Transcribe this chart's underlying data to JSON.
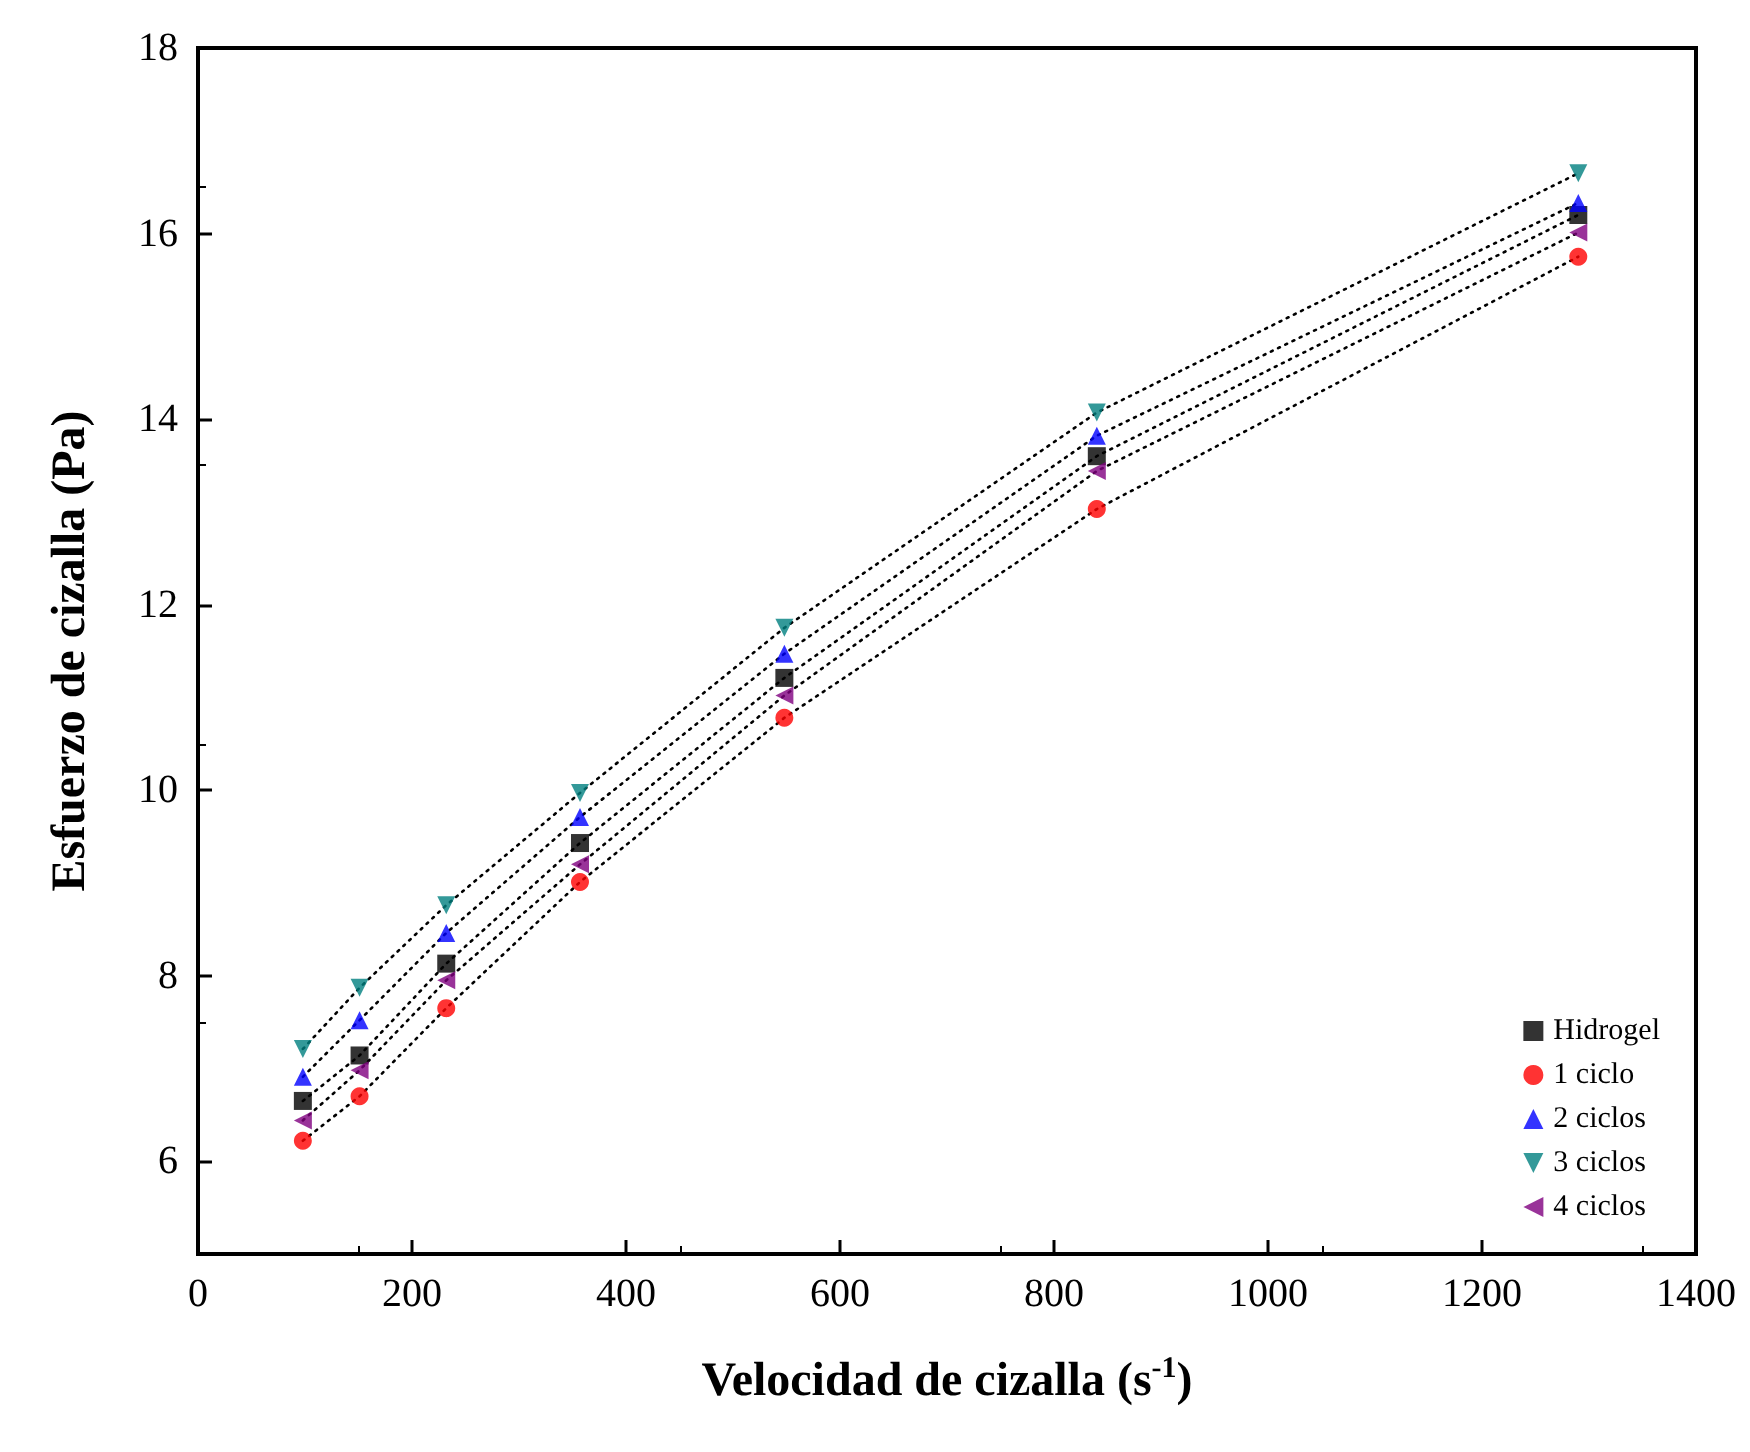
{
  "chart_data": {
    "type": "scatter",
    "xlabel": "Velocidad de cizalla (s$^{-1}$)",
    "ylabel": "Esfuerzo de cizalla (Pa)",
    "xlim": [
      0,
      1400
    ],
    "xticks": [
      0,
      200,
      400,
      600,
      800,
      1000,
      1200,
      1400
    ],
    "ylim": [
      5,
      18
    ],
    "yticks": [
      6,
      8,
      10,
      12,
      14,
      16,
      18
    ],
    "grid": false,
    "legend": "bottom right",
    "x": [
      98,
      151,
      232,
      357,
      548,
      840,
      1290
    ],
    "series": [
      {
        "name": "Hidrogel",
        "color": "#000000",
        "marker": "square",
        "values": [
          6.65,
          7.14,
          8.13,
          9.43,
          11.21,
          13.6,
          16.2
        ]
      },
      {
        "name": "1 ciclo",
        "color": "#ff0000",
        "marker": "circle",
        "values": [
          6.22,
          6.7,
          7.65,
          9.01,
          10.78,
          13.03,
          15.75
        ]
      },
      {
        "name": "2 ciclos",
        "color": "#0000ff",
        "marker": "triangle",
        "values": [
          6.91,
          7.52,
          8.46,
          9.71,
          11.47,
          13.82,
          16.33
        ]
      },
      {
        "name": "3 ciclos",
        "color": "#008080",
        "marker": "triangle-down",
        "values": [
          7.21,
          7.87,
          8.76,
          9.97,
          11.75,
          14.07,
          16.65
        ]
      },
      {
        "name": "4 ciclos",
        "color": "#800080",
        "marker": "triangle-left",
        "values": [
          6.44,
          6.98,
          7.95,
          9.2,
          11.02,
          13.44,
          16.01
        ]
      },
      {
        "type": "line",
        "color": "#000000",
        "marker": "none",
        "line_style": "dotted",
        "values": [
          6.65,
          7.14,
          8.13,
          9.43,
          11.21,
          13.6,
          16.2
        ]
      },
      {
        "type": "line",
        "color": "#000000",
        "marker": "none",
        "line_style": "dotted",
        "values": [
          6.22,
          6.7,
          7.65,
          9.01,
          10.78,
          13.03,
          15.75
        ]
      },
      {
        "type": "line",
        "color": "#000000",
        "marker": "none",
        "line_style": "dotted",
        "values": [
          6.91,
          7.52,
          8.46,
          9.71,
          11.47,
          13.82,
          16.33
        ]
      },
      {
        "type": "line",
        "color": "#000000",
        "marker": "none",
        "line_style": "dotted",
        "values": [
          7.21,
          7.87,
          8.76,
          9.97,
          11.75,
          14.07,
          16.65
        ]
      },
      {
        "type": "line",
        "color": "#000000",
        "marker": "none",
        "line_style": "dotted",
        "values": [
          6.44,
          6.98,
          7.95,
          9.2,
          11.02,
          13.44,
          16.01
        ]
      }
    ]
  }
}
